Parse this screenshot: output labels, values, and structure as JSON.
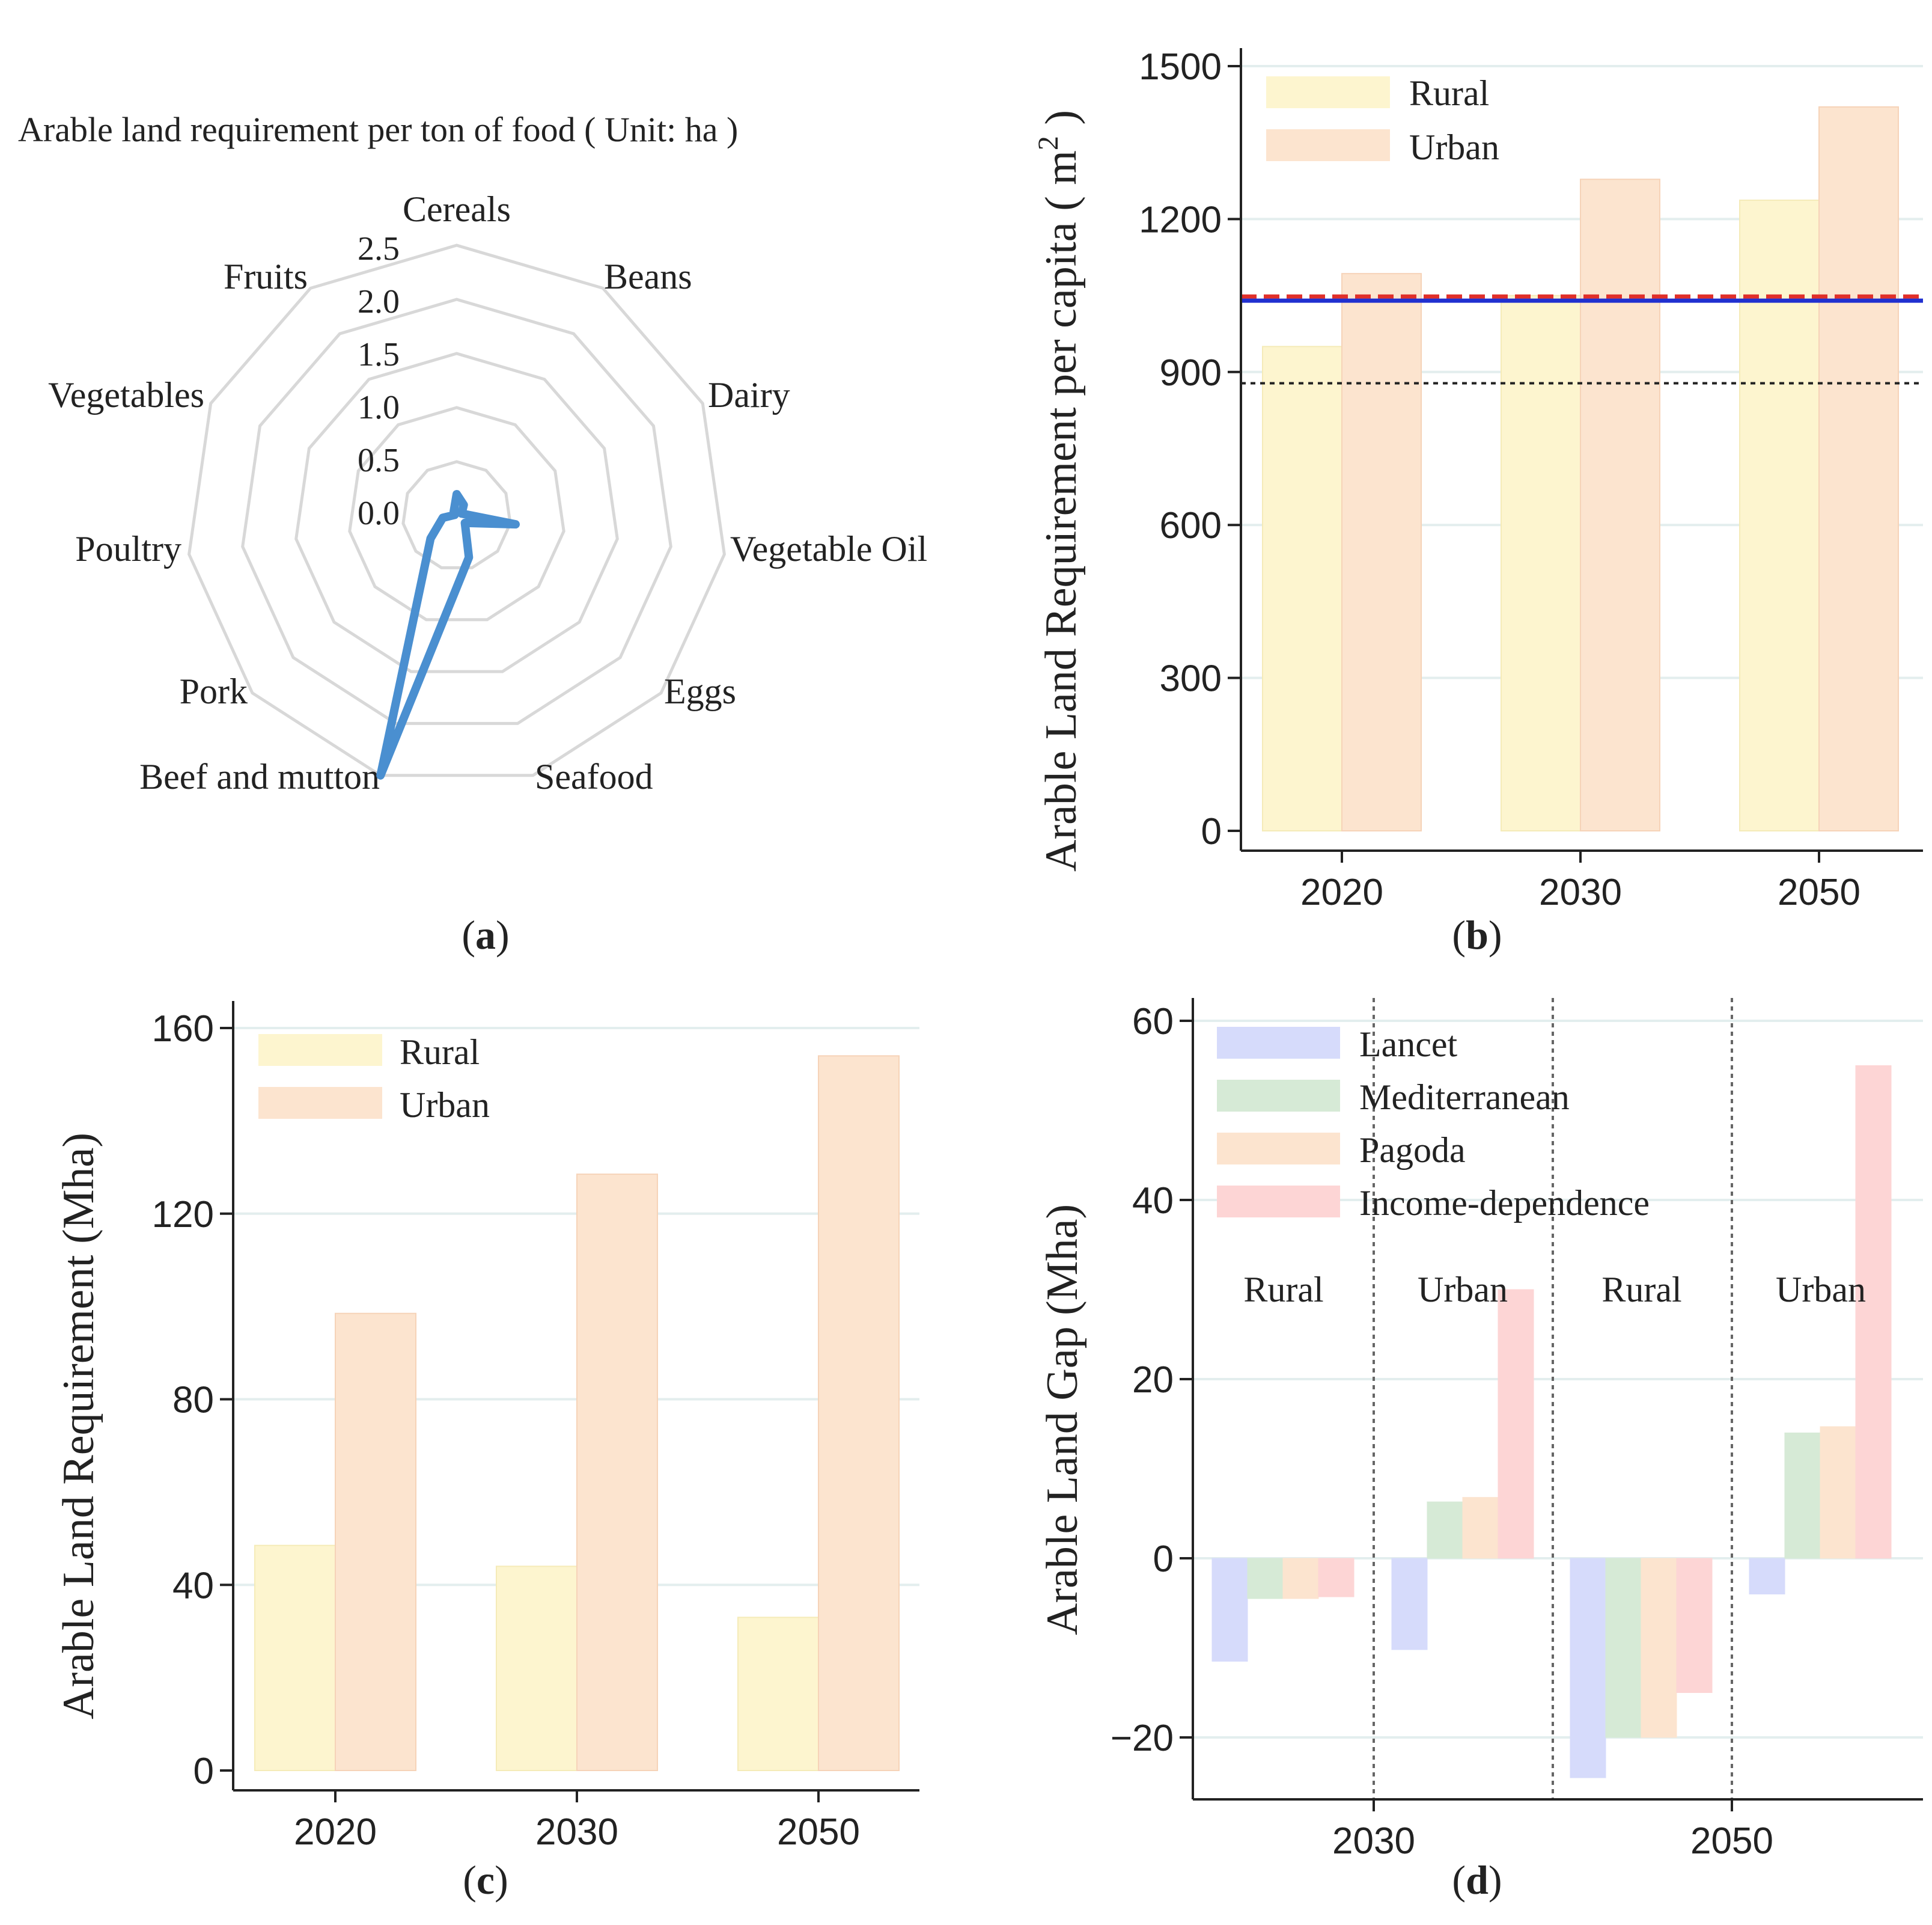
{
  "colors": {
    "rural": "#fdf5cf",
    "rural_edge": "#f5ebb8",
    "urban": "#fce4cf",
    "urban_edge": "#f6d3b8",
    "lancet": "#d6dbfb",
    "mediterranean": "#d6ead6",
    "pagoda": "#fce4cf",
    "income": "#fdd5d5",
    "radar_line": "#4a8fd0",
    "radar_grid": "#d8d8d8",
    "gridline": "#e3eeee",
    "ref_red": "#e0302a",
    "ref_blue": "#2030d0",
    "ref_black": "#222222"
  },
  "chart_data": [
    {
      "id": "a",
      "type": "radar",
      "panel_label": "a",
      "title": "Arable land requirement per ton of food ( Unit: ha )",
      "categories": [
        "Cereals",
        "Beans",
        "Dairy",
        "Vegetable Oil",
        "Eggs",
        "Seafood",
        "Beef and mutton",
        "Pork",
        "Poultry",
        "Vegetables",
        "Fruits"
      ],
      "values": [
        0.2,
        0.12,
        0.05,
        0.55,
        0.1,
        0.4,
        2.5,
        0.32,
        0.13,
        0.02,
        0.05
      ],
      "rlim": [
        0,
        2.5
      ],
      "rticks": [
        "0.0",
        "0.5",
        "1.0",
        "1.5",
        "2.0",
        "2.5"
      ]
    },
    {
      "id": "b",
      "type": "bar",
      "panel_label": "b",
      "ylabel": "Arable Land Requirement per capita ( m",
      "ylabel_sup": "2",
      "ylabel_close": " )",
      "categories": [
        "2020",
        "2030",
        "2050"
      ],
      "series": [
        {
          "name": "Rural",
          "values": [
            950,
            1050,
            1237
          ]
        },
        {
          "name": "Urban",
          "values": [
            1093,
            1278,
            1420
          ]
        }
      ],
      "ylim": [
        0,
        1550
      ],
      "yticks": [
        "0",
        "300",
        "600",
        "900",
        "1200",
        "1500"
      ],
      "reference_lines": [
        {
          "style": "red-dashed",
          "value": 1048
        },
        {
          "style": "blue-solid",
          "value": 1040
        },
        {
          "style": "black-dotted",
          "value": 878
        }
      ],
      "legend": [
        "Rural",
        "Urban"
      ]
    },
    {
      "id": "c",
      "type": "bar",
      "panel_label": "c",
      "ylabel": "Arable Land Requirement (Mha)",
      "categories": [
        "2020",
        "2030",
        "2050"
      ],
      "series": [
        {
          "name": "Rural",
          "values": [
            48.5,
            44,
            33
          ]
        },
        {
          "name": "Urban",
          "values": [
            98.5,
            128.5,
            154
          ]
        }
      ],
      "ylim": [
        0,
        163
      ],
      "yticks": [
        "0",
        "40",
        "80",
        "120",
        "160"
      ],
      "legend": [
        "Rural",
        "Urban"
      ]
    },
    {
      "id": "d",
      "type": "bar",
      "panel_label": "d",
      "ylabel": "Arable Land Gap (Mha)",
      "groups": [
        {
          "year": "2030",
          "area": "Rural",
          "values": [
            -11.5,
            -4.5,
            -4.5,
            -4.3
          ]
        },
        {
          "year": "2030",
          "area": "Urban",
          "values": [
            -10.2,
            6.3,
            6.8,
            30
          ]
        },
        {
          "year": "2050",
          "area": "Rural",
          "values": [
            -24.5,
            -20,
            -20,
            -15
          ]
        },
        {
          "year": "2050",
          "area": "Urban",
          "values": [
            -4,
            14,
            14.7,
            55
          ]
        }
      ],
      "series_names": [
        "Lancet",
        "Mediterranean",
        "Pagoda",
        "Income-dependence"
      ],
      "area_labels": [
        "Rural",
        "Urban",
        "Rural",
        "Urban"
      ],
      "xtick_labels": [
        "2030",
        "2050"
      ],
      "ylim": [
        -26.5,
        62.5
      ],
      "yticks": [
        "−20",
        "0",
        "20",
        "40",
        "60"
      ],
      "legend": [
        "Lancet",
        "Mediterranean",
        "Pagoda",
        "Income-dependence"
      ]
    }
  ]
}
